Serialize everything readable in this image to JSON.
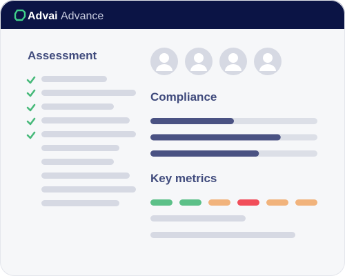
{
  "header": {
    "brand": "Advai",
    "product": "Advance"
  },
  "assessment": {
    "title": "Assessment"
  },
  "compliance": {
    "title": "Compliance",
    "progress": [
      50,
      78,
      65
    ]
  },
  "key_metrics": {
    "title": "Key metrics"
  }
}
